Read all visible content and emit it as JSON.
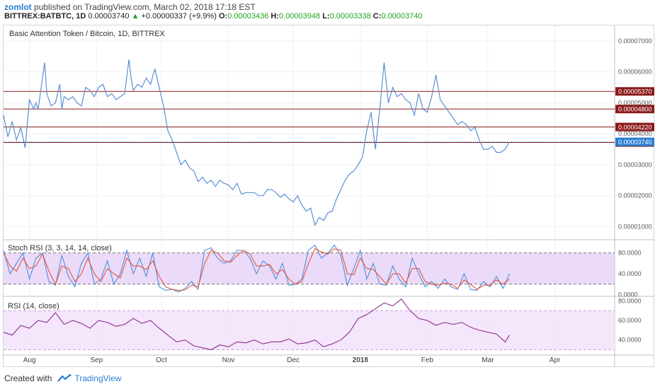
{
  "header": {
    "user": "zomlot",
    "published": "published on TradingView.com, March 02, 2018 17:18 EST",
    "symbol": "BITTREX:BATBTC, 1D",
    "last": "0.00003740",
    "change": "+0.00000337 (+9.9%)",
    "o_label": "O:",
    "o": "0.00003436",
    "h_label": "H:",
    "h": "0.00003948",
    "l_label": "L:",
    "l": "0.00003338",
    "c_label": "C:",
    "c": "0.00003740"
  },
  "footer": {
    "created": "Created with",
    "brand": "TradingView"
  },
  "colors": {
    "line": "#5b8fd3",
    "hline": "#8b1a1a",
    "last": "#2a7fd3",
    "stochK": "#4a90d9",
    "stochD": "#e8543a",
    "rsi": "#8a2d8e",
    "band": "#e6cdf7",
    "rsiband": "#f3e3fb"
  },
  "chart_data": [
    {
      "type": "line",
      "title": "Basic Attention Token / Bitcoin, 1D, BITTREX",
      "x_ticks": [
        "Aug",
        "Sep",
        "Oct",
        "Nov",
        "Dec",
        "2018",
        "Feb",
        "Mar",
        "Apr"
      ],
      "y_ticks": [
        "0.00007000",
        "0.00006000",
        "0.00005000",
        "0.00004000",
        "0.00003000",
        "0.00002000",
        "0.00001000"
      ],
      "y_tick_values": [
        7e-05,
        6e-05,
        5e-05,
        4e-05,
        3e-05,
        2e-05,
        1e-05
      ],
      "ylim": [
        6e-06,
        7.5e-05
      ],
      "horizontal_lines": [
        {
          "label": "0.00005370",
          "value": 5.37e-05
        },
        {
          "label": "0.00004800",
          "value": 4.8e-05
        },
        {
          "label": "0.00004220",
          "value": 4.22e-05
        },
        {
          "label": "0.00003719",
          "value": 3.719e-05
        }
      ],
      "last_price": {
        "label": "0.00003740",
        "value": 3.74e-05
      },
      "x_range_days": [
        0,
        282
      ],
      "x_tick_days": [
        12,
        43,
        73,
        104,
        134,
        165,
        196,
        224,
        255
      ],
      "series": [
        {
          "x": [
            0,
            2,
            4,
            6,
            8,
            10,
            12,
            14,
            15,
            16,
            18,
            19,
            20,
            22,
            24,
            26,
            27,
            28,
            30,
            32,
            34,
            36,
            38,
            40,
            42,
            44,
            46,
            48,
            50,
            52,
            54,
            56,
            58,
            59,
            60,
            62,
            64,
            66,
            68,
            70,
            72,
            74,
            76,
            78,
            80,
            82,
            84,
            86,
            88,
            90,
            92,
            94,
            96,
            98,
            100,
            102,
            104,
            106,
            108,
            110,
            112,
            114,
            116,
            118,
            120,
            122,
            124,
            126,
            128,
            130,
            132,
            134,
            136,
            138,
            140,
            142,
            144,
            146,
            148,
            150,
            152,
            154,
            156,
            158,
            160,
            162,
            164,
            166,
            168,
            170,
            172,
            174,
            176,
            178,
            180,
            182,
            184,
            186,
            188,
            190,
            192,
            194,
            196,
            198,
            200,
            202,
            204,
            206,
            208,
            210,
            212,
            214,
            216,
            218,
            220,
            222,
            224,
            226,
            228,
            230,
            232,
            234
          ],
          "y": [
            4.6e-05,
            3.9e-05,
            4.4e-05,
            3.8e-05,
            4.2e-05,
            3.55e-05,
            5.1e-05,
            4.8e-05,
            5e-05,
            4.8e-05,
            5.8e-05,
            6.3e-05,
            5.3e-05,
            4.9e-05,
            5e-05,
            5.6e-05,
            4.8e-05,
            5.2e-05,
            5.1e-05,
            5.2e-05,
            5e-05,
            4.9e-05,
            5.5e-05,
            5.4e-05,
            5.2e-05,
            5.5e-05,
            5.6e-05,
            5.2e-05,
            5.3e-05,
            5.1e-05,
            5.2e-05,
            5.3e-05,
            6.4e-05,
            5.8e-05,
            5.4e-05,
            5.6e-05,
            5.5e-05,
            5.8e-05,
            5.6e-05,
            6.1e-05,
            5.5e-05,
            4.9e-05,
            4.1e-05,
            3.8e-05,
            3.4e-05,
            3e-05,
            3.15e-05,
            2.9e-05,
            2.8e-05,
            2.45e-05,
            2.6e-05,
            2.4e-05,
            2.5e-05,
            2.3e-05,
            2.5e-05,
            2.4e-05,
            2.35e-05,
            2.2e-05,
            2.4e-05,
            2.05e-05,
            2.1e-05,
            2.1e-05,
            2.1e-05,
            2e-05,
            2e-05,
            2.2e-05,
            2.2e-05,
            2.1e-05,
            1.95e-05,
            2.05e-05,
            1.9e-05,
            1.8e-05,
            2e-05,
            1.7e-05,
            1.5e-05,
            1.6e-05,
            1.05e-05,
            1.3e-05,
            1.2e-05,
            1.45e-05,
            1.5e-05,
            1.9e-05,
            2.2e-05,
            2.5e-05,
            2.7e-05,
            2.8e-05,
            3e-05,
            3.25e-05,
            4.1e-05,
            4.7e-05,
            3.5e-05,
            4.8e-05,
            6.3e-05,
            5e-05,
            5.5e-05,
            5.2e-05,
            5.3e-05,
            5.1e-05,
            5e-05,
            4.6e-05,
            5.3e-05,
            4.8e-05,
            4.7e-05,
            5.2e-05,
            5.9e-05,
            5.1e-05,
            4.9e-05,
            4.7e-05,
            4.5e-05,
            4.3e-05,
            4.4e-05,
            4.3e-05,
            4.1e-05,
            4.2e-05,
            3.8e-05,
            3.5e-05,
            3.5e-05,
            3.6e-05,
            3.4e-05,
            3.4e-05,
            3.5e-05,
            3.74e-05
          ]
        }
      ]
    },
    {
      "type": "line",
      "title": "Stoch RSI (3, 3, 14, 14, close)",
      "y_ticks": [
        "80.0000",
        "40.0000",
        "0.0000"
      ],
      "y_tick_values": [
        80,
        40,
        0
      ],
      "ylim": [
        -2,
        104
      ],
      "band": [
        20,
        80
      ],
      "series": [
        {
          "name": "K",
          "x": [
            0,
            3,
            6,
            9,
            12,
            15,
            18,
            21,
            24,
            27,
            30,
            33,
            36,
            39,
            42,
            45,
            48,
            51,
            54,
            57,
            60,
            63,
            66,
            69,
            72,
            75,
            78,
            81,
            84,
            87,
            90,
            93,
            96,
            99,
            102,
            105,
            108,
            111,
            114,
            117,
            120,
            123,
            126,
            129,
            132,
            135,
            138,
            141,
            144,
            147,
            150,
            153,
            156,
            159,
            162,
            165,
            168,
            171,
            174,
            177,
            180,
            183,
            186,
            189,
            192,
            195,
            198,
            201,
            204,
            207,
            210,
            213,
            216,
            219,
            222,
            225,
            228,
            231,
            234
          ],
          "values": [
            85,
            40,
            60,
            80,
            30,
            70,
            80,
            25,
            18,
            75,
            35,
            15,
            60,
            80,
            20,
            30,
            65,
            20,
            40,
            85,
            40,
            70,
            35,
            80,
            15,
            8,
            10,
            5,
            12,
            25,
            10,
            85,
            90,
            70,
            60,
            65,
            85,
            85,
            70,
            40,
            65,
            55,
            30,
            60,
            18,
            20,
            30,
            85,
            95,
            70,
            80,
            95,
            75,
            18,
            50,
            85,
            30,
            60,
            20,
            18,
            55,
            30,
            15,
            70,
            40,
            15,
            25,
            12,
            30,
            15,
            10,
            40,
            10,
            8,
            25,
            15,
            35,
            12,
            40
          ]
        },
        {
          "name": "D",
          "x": [
            0,
            3,
            6,
            9,
            12,
            15,
            18,
            21,
            24,
            27,
            30,
            33,
            36,
            39,
            42,
            45,
            48,
            51,
            54,
            57,
            60,
            63,
            66,
            69,
            72,
            75,
            78,
            81,
            84,
            87,
            90,
            93,
            96,
            99,
            102,
            105,
            108,
            111,
            114,
            117,
            120,
            123,
            126,
            129,
            132,
            135,
            138,
            141,
            144,
            147,
            150,
            153,
            156,
            159,
            162,
            165,
            168,
            171,
            174,
            177,
            180,
            183,
            186,
            189,
            192,
            195,
            198,
            201,
            204,
            207,
            210,
            213,
            216,
            219,
            222,
            225,
            228,
            231,
            234
          ],
          "values": [
            80,
            55,
            45,
            70,
            50,
            55,
            78,
            45,
            20,
            55,
            50,
            25,
            40,
            70,
            40,
            25,
            50,
            40,
            32,
            70,
            55,
            55,
            48,
            65,
            35,
            15,
            10,
            8,
            9,
            18,
            15,
            60,
            85,
            80,
            65,
            62,
            75,
            85,
            78,
            55,
            55,
            58,
            40,
            48,
            30,
            20,
            25,
            60,
            88,
            82,
            78,
            88,
            85,
            40,
            38,
            70,
            50,
            48,
            35,
            20,
            40,
            40,
            22,
            50,
            50,
            25,
            20,
            18,
            22,
            20,
            12,
            28,
            20,
            10,
            18,
            18,
            28,
            20,
            30
          ]
        }
      ]
    },
    {
      "type": "line",
      "title": "RSI (14, close)",
      "y_ticks": [
        "80.0000",
        "60.0000",
        "40.0000"
      ],
      "y_tick_values": [
        80,
        60,
        40
      ],
      "ylim": [
        26,
        84
      ],
      "band": [
        30,
        70
      ],
      "series": [
        {
          "name": "RSI",
          "x": [
            0,
            4,
            8,
            12,
            16,
            20,
            24,
            28,
            32,
            36,
            40,
            44,
            48,
            52,
            56,
            60,
            64,
            68,
            72,
            76,
            80,
            84,
            88,
            92,
            96,
            100,
            104,
            108,
            112,
            116,
            120,
            124,
            128,
            132,
            136,
            140,
            144,
            148,
            152,
            156,
            160,
            164,
            168,
            172,
            176,
            180,
            184,
            188,
            192,
            196,
            200,
            204,
            208,
            212,
            216,
            220,
            224,
            228,
            232,
            234
          ],
          "values": [
            48,
            45,
            55,
            52,
            60,
            58,
            68,
            56,
            60,
            57,
            52,
            60,
            58,
            54,
            56,
            62,
            57,
            60,
            52,
            45,
            38,
            40,
            34,
            32,
            30,
            35,
            33,
            38,
            37,
            40,
            36,
            38,
            38,
            41,
            36,
            37,
            40,
            33,
            36,
            40,
            48,
            62,
            66,
            72,
            78,
            75,
            82,
            70,
            62,
            60,
            55,
            58,
            56,
            58,
            53,
            50,
            48,
            46,
            38,
            45
          ]
        }
      ]
    }
  ]
}
